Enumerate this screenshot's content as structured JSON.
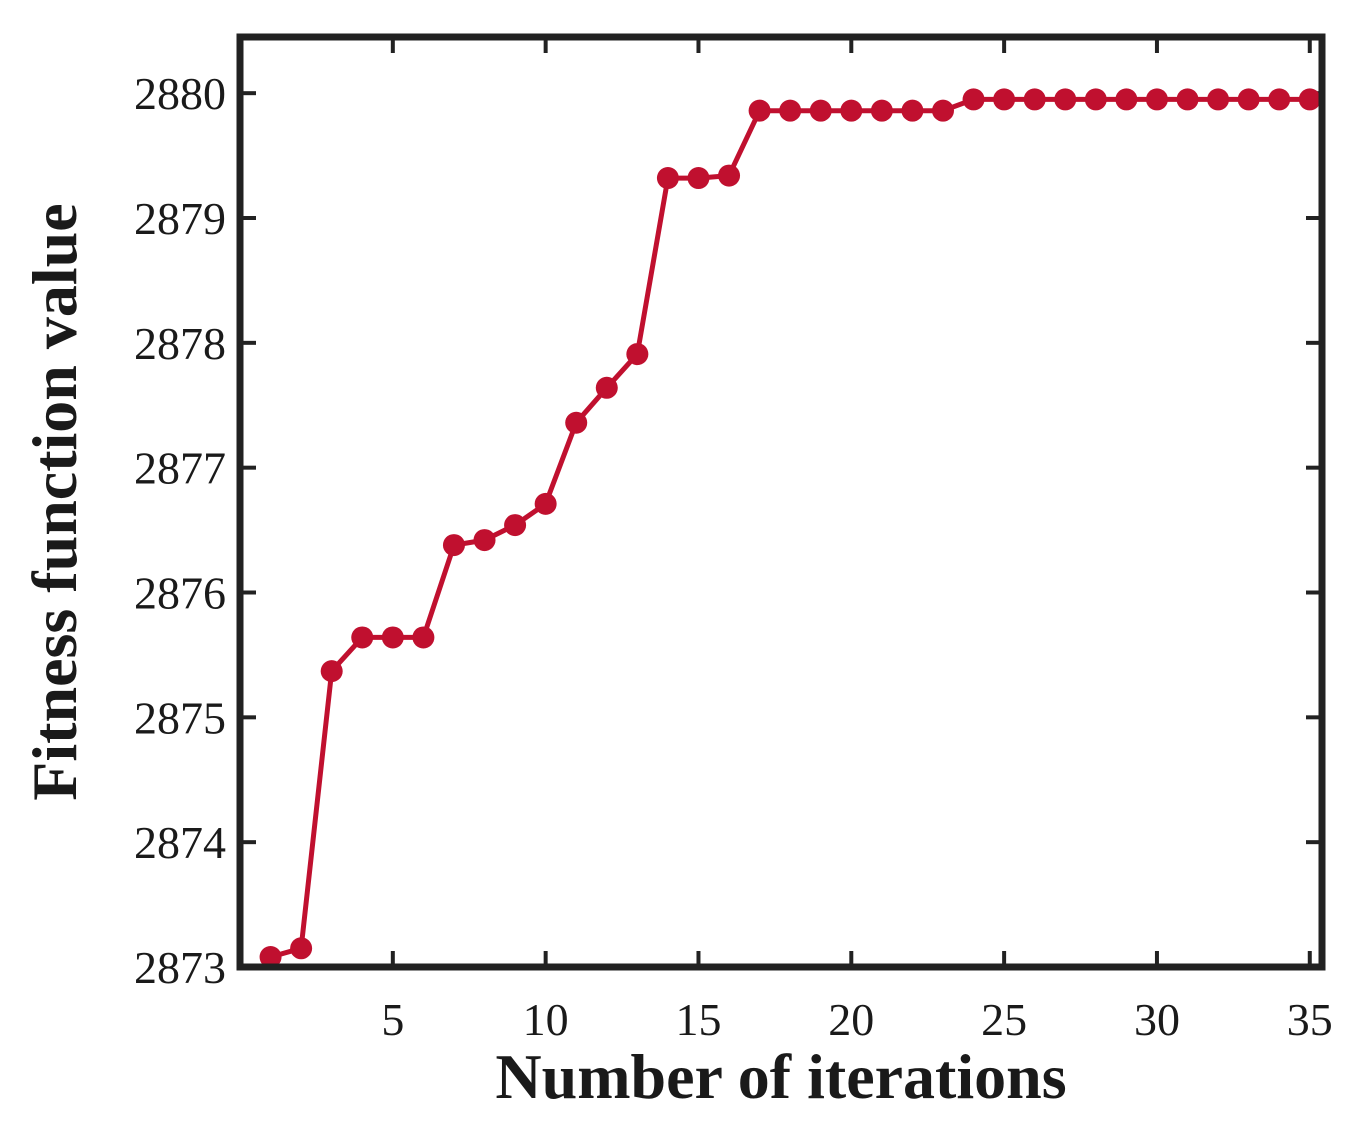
{
  "chart_data": {
    "type": "line",
    "title": "",
    "xlabel": "Number of iterations",
    "ylabel": "Fitness function value",
    "xlim": [
      0,
      35.4
    ],
    "ylim": [
      2873,
      2880.45
    ],
    "xticks": [
      5,
      10,
      15,
      20,
      25,
      30,
      35
    ],
    "xtick_labels": [
      "5",
      "10",
      "15",
      "20",
      "25",
      "30",
      "35"
    ],
    "yticks": [
      2873,
      2874,
      2875,
      2876,
      2877,
      2878,
      2879,
      2880
    ],
    "ytick_labels": [
      "2873",
      "2874",
      "2875",
      "2876",
      "2877",
      "2878",
      "2879",
      "2880"
    ],
    "grid": false,
    "legend": "none",
    "series": [
      {
        "color": "#c0102f",
        "marker": "circle",
        "x": [
          1,
          2,
          3,
          4,
          5,
          6,
          7,
          8,
          9,
          10,
          11,
          12,
          13,
          14,
          15,
          16,
          17,
          18,
          19,
          20,
          21,
          22,
          23,
          24,
          25,
          26,
          27,
          28,
          29,
          30,
          31,
          32,
          33,
          34,
          35
        ],
        "y": [
          2873.08,
          2873.15,
          2875.37,
          2875.64,
          2875.64,
          2875.64,
          2876.38,
          2876.42,
          2876.54,
          2876.71,
          2877.36,
          2877.64,
          2877.91,
          2879.32,
          2879.32,
          2879.34,
          2879.86,
          2879.86,
          2879.86,
          2879.86,
          2879.86,
          2879.86,
          2879.86,
          2879.95,
          2879.95,
          2879.95,
          2879.95,
          2879.95,
          2879.95,
          2879.95,
          2879.95,
          2879.95,
          2879.95,
          2879.95,
          2879.95
        ]
      }
    ]
  }
}
